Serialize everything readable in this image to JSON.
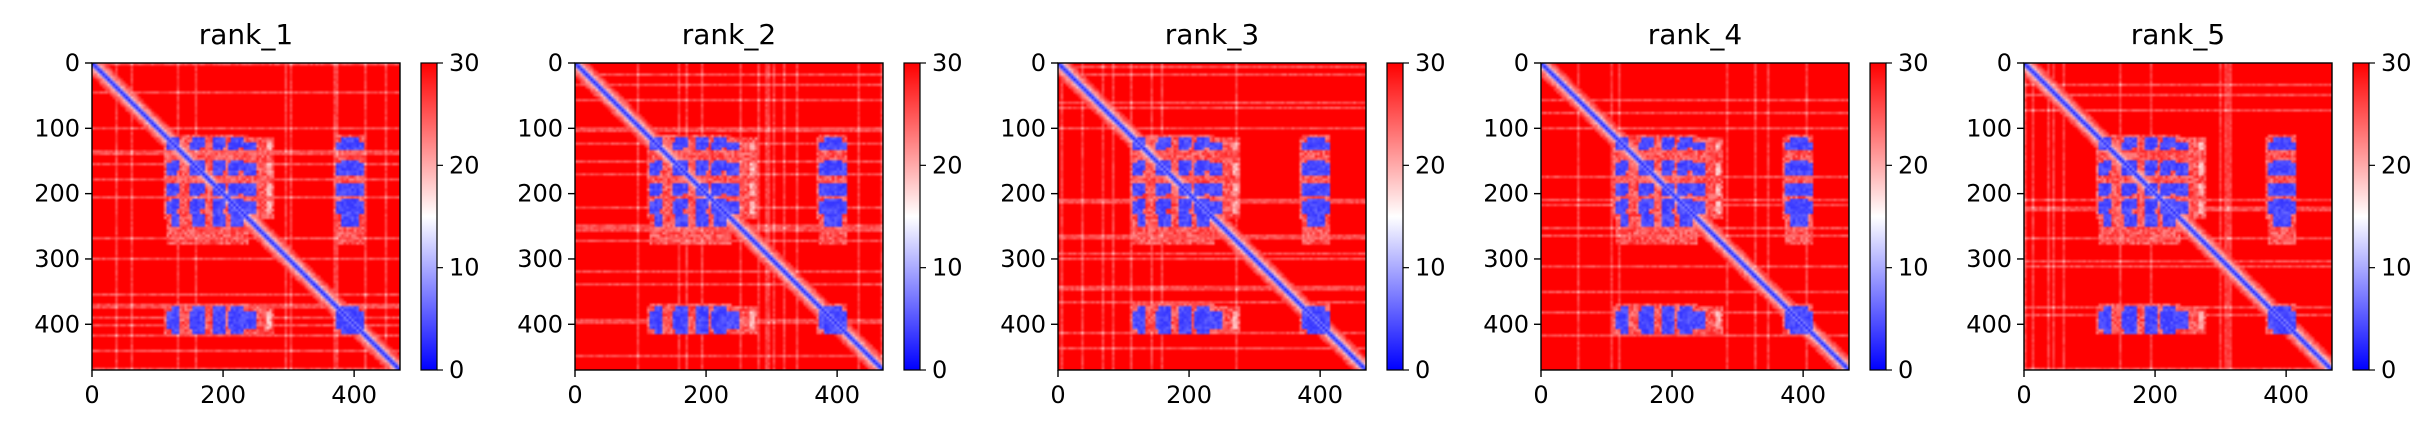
{
  "chart_data": [
    {
      "type": "heatmap",
      "title": "rank_1",
      "xlim": [
        0,
        470
      ],
      "ylim": [
        470,
        0
      ],
      "x_ticks": [
        0,
        200,
        400
      ],
      "y_ticks": [
        0,
        100,
        200,
        300,
        400
      ],
      "colorbar": {
        "range": [
          0,
          30
        ],
        "ticks": [
          0,
          10,
          20,
          30
        ],
        "colormap": "bwr"
      },
      "grid": false
    },
    {
      "type": "heatmap",
      "title": "rank_2",
      "xlim": [
        0,
        470
      ],
      "ylim": [
        470,
        0
      ],
      "x_ticks": [
        0,
        200,
        400
      ],
      "y_ticks": [
        0,
        100,
        200,
        300,
        400
      ],
      "colorbar": {
        "range": [
          0,
          30
        ],
        "ticks": [
          0,
          10,
          20,
          30
        ],
        "colormap": "bwr"
      },
      "grid": false
    },
    {
      "type": "heatmap",
      "title": "rank_3",
      "xlim": [
        0,
        470
      ],
      "ylim": [
        470,
        0
      ],
      "x_ticks": [
        0,
        200,
        400
      ],
      "y_ticks": [
        0,
        100,
        200,
        300,
        400
      ],
      "colorbar": {
        "range": [
          0,
          30
        ],
        "ticks": [
          0,
          10,
          20,
          30
        ],
        "colormap": "bwr"
      },
      "grid": false
    },
    {
      "type": "heatmap",
      "title": "rank_4",
      "xlim": [
        0,
        470
      ],
      "ylim": [
        470,
        0
      ],
      "x_ticks": [
        0,
        200,
        400
      ],
      "y_ticks": [
        0,
        100,
        200,
        300,
        400
      ],
      "colorbar": {
        "range": [
          0,
          30
        ],
        "ticks": [
          0,
          10,
          20,
          30
        ],
        "colormap": "bwr"
      },
      "grid": false
    },
    {
      "type": "heatmap",
      "title": "rank_5",
      "xlim": [
        0,
        470
      ],
      "ylim": [
        470,
        0
      ],
      "x_ticks": [
        0,
        200,
        400
      ],
      "y_ticks": [
        0,
        100,
        200,
        300,
        400
      ],
      "colorbar": {
        "range": [
          0,
          30
        ],
        "ticks": [
          0,
          10,
          20,
          30
        ],
        "colormap": "bwr"
      },
      "grid": false
    }
  ],
  "contact_features": {
    "diagonal_band_value": 2,
    "background_value": 30,
    "blue_blocks_value": 3,
    "row_bands": [
      [
        118,
        132
      ],
      [
        150,
        170
      ],
      [
        183,
        203
      ],
      [
        211,
        228
      ],
      [
        377,
        407
      ]
    ],
    "column_bands": [
      [
        112,
        128
      ],
      [
        147,
        163
      ],
      [
        184,
        198
      ],
      [
        206,
        222
      ],
      [
        231,
        247
      ],
      [
        372,
        392
      ],
      [
        394,
        412
      ]
    ],
    "spacer_columns": [
      [
        263,
        273
      ]
    ],
    "halo_rows": [
      [
        112,
        238
      ],
      [
        370,
        412
      ]
    ],
    "halo_cols": [
      [
        108,
        275
      ],
      [
        366,
        415
      ]
    ]
  },
  "colors": {
    "low": "#0000ff",
    "mid": "#ffffff",
    "high": "#ff0000",
    "axis": "#000000"
  }
}
